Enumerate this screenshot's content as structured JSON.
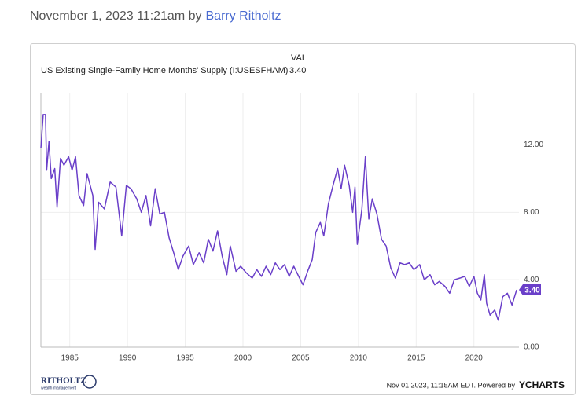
{
  "byline": {
    "date": "November 1, 2023 11:21am by",
    "author": "Barry Ritholtz"
  },
  "chart_data": {
    "type": "line",
    "legend_header": "VAL",
    "latest": {
      "value": 3.4,
      "label": "3.40"
    },
    "footer": {
      "timestamp": "Nov 01 2023, 11:15AM EDT. Powered by",
      "brand": "YCHARTS",
      "logo": "RITHOLTZ",
      "logo_sub": "wealth management"
    },
    "xlim": [
      1982.5,
      2023.9
    ],
    "ylim": [
      0,
      15.1
    ],
    "xticks": [
      1985,
      1990,
      1995,
      2000,
      2005,
      2010,
      2015,
      2020
    ],
    "yticks": [
      {
        "value": 0,
        "label": "0.00"
      },
      {
        "value": 4,
        "label": "4.00"
      },
      {
        "value": 8,
        "label": "8.00"
      },
      {
        "value": 12,
        "label": "12.00"
      }
    ],
    "grid": true,
    "x": [
      1982.5,
      1982.7,
      1982.9,
      1983.0,
      1983.2,
      1983.4,
      1983.7,
      1983.9,
      1984.2,
      1984.5,
      1984.9,
      1985.2,
      1985.5,
      1985.8,
      1986.2,
      1986.5,
      1987.0,
      1987.2,
      1987.5,
      1988.0,
      1988.5,
      1989.0,
      1989.5,
      1989.9,
      1990.3,
      1990.8,
      1991.2,
      1991.6,
      1992.0,
      1992.4,
      1992.8,
      1993.2,
      1993.6,
      1994.0,
      1994.4,
      1994.8,
      1995.3,
      1995.7,
      1996.2,
      1996.6,
      1997.0,
      1997.4,
      1997.8,
      1998.2,
      1998.6,
      1998.9,
      1999.4,
      1999.8,
      2000.3,
      2000.8,
      2001.2,
      2001.6,
      2002.0,
      2002.4,
      2002.8,
      2003.2,
      2003.6,
      2004.0,
      2004.4,
      2004.9,
      2005.2,
      2005.6,
      2006.0,
      2006.3,
      2006.7,
      2007.0,
      2007.4,
      2007.8,
      2008.2,
      2008.5,
      2008.8,
      2009.2,
      2009.5,
      2009.7,
      2009.9,
      2010.3,
      2010.6,
      2010.9,
      2011.2,
      2011.6,
      2012.0,
      2012.4,
      2012.8,
      2013.2,
      2013.6,
      2014.0,
      2014.4,
      2014.8,
      2015.3,
      2015.7,
      2016.2,
      2016.6,
      2017.0,
      2017.5,
      2017.9,
      2018.3,
      2018.8,
      2019.2,
      2019.6,
      2020.0,
      2020.3,
      2020.6,
      2020.9,
      2021.1,
      2021.4,
      2021.8,
      2022.1,
      2022.5,
      2022.9,
      2023.3,
      2023.7
    ],
    "series": [
      {
        "name": "US Existing Single-Family Home Months' Supply (I:USESFHAM)",
        "color": "#6a3fc9",
        "values": [
          11.8,
          13.8,
          13.8,
          10.5,
          12.2,
          10.0,
          10.6,
          8.3,
          11.2,
          10.8,
          11.3,
          10.5,
          11.3,
          9.0,
          8.4,
          10.3,
          9.0,
          5.8,
          8.6,
          8.2,
          9.8,
          9.5,
          6.6,
          9.6,
          9.4,
          8.8,
          8.0,
          9.0,
          7.2,
          9.4,
          7.9,
          8.0,
          6.5,
          5.6,
          4.6,
          5.4,
          6.0,
          4.9,
          5.6,
          5.0,
          6.4,
          5.7,
          6.9,
          5.4,
          4.3,
          6.0,
          4.5,
          4.8,
          4.4,
          4.1,
          4.6,
          4.2,
          4.8,
          4.3,
          5.0,
          4.6,
          4.9,
          4.2,
          4.8,
          4.1,
          3.7,
          4.5,
          5.2,
          6.8,
          7.4,
          6.6,
          8.5,
          9.6,
          10.6,
          9.4,
          10.8,
          9.6,
          8.0,
          9.5,
          6.1,
          8.2,
          11.3,
          7.6,
          8.8,
          7.9,
          6.4,
          6.0,
          4.7,
          4.1,
          5.0,
          4.9,
          5.0,
          4.6,
          4.9,
          4.0,
          4.3,
          3.7,
          3.9,
          3.6,
          3.2,
          4.0,
          4.1,
          4.2,
          3.6,
          4.2,
          3.2,
          2.8,
          4.3,
          2.6,
          1.9,
          2.2,
          1.6,
          3.0,
          3.2,
          2.5,
          3.4
        ]
      }
    ]
  }
}
